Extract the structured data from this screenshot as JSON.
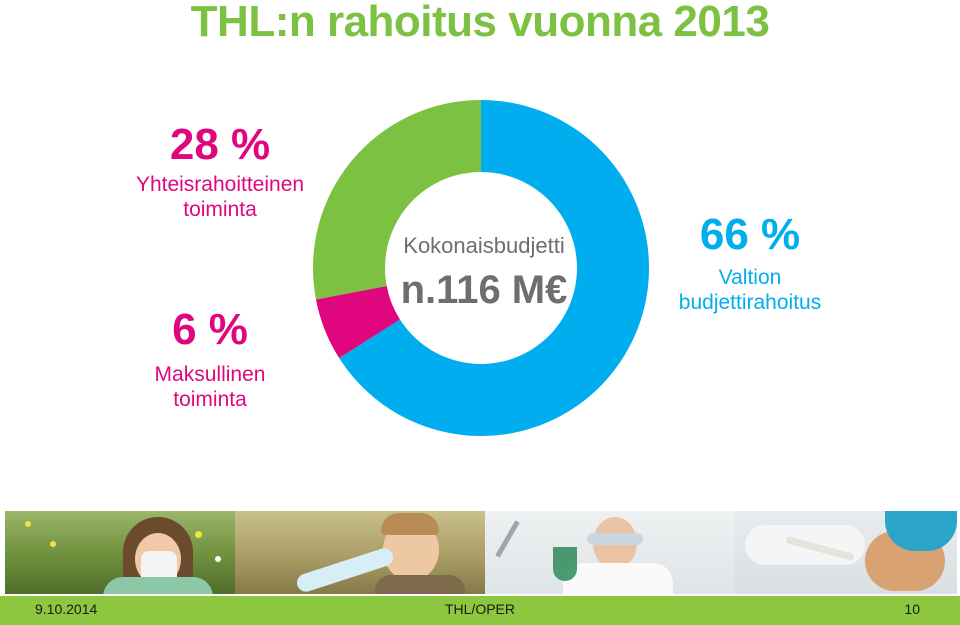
{
  "slide": {
    "title": "THL:n rahoitus vuonna 2013"
  },
  "labels": {
    "yhteis": {
      "percent": "28 %",
      "line1": "Yhteisrahoitteinen",
      "line2": "toiminta"
    },
    "maksul": {
      "percent": "6 %",
      "line1": "Maksullinen",
      "line2": "toiminta"
    },
    "valtion": {
      "percent": "66 %",
      "line1": "Valtion",
      "line2": "budjettirahoitus"
    }
  },
  "center": {
    "label": "Kokonaisbudjetti",
    "value": "n.116 M€"
  },
  "chart_data": {
    "type": "pie",
    "title": "",
    "hole": "donut",
    "slices": [
      {
        "label": "Valtion budjettirahoitus",
        "value": 66,
        "color": "#00aeef"
      },
      {
        "label": "Maksullinen toiminta",
        "value": 6,
        "color": "#e0067d"
      },
      {
        "label": "Yhteisrahoitteinen toiminta",
        "value": 28,
        "color": "#7cc142"
      }
    ]
  },
  "colors": {
    "green": "#7cc142",
    "magenta": "#e0067d",
    "blue": "#00aeef",
    "gray": "#6d6e71",
    "footer": "#8dc63f"
  },
  "footer": {
    "date": "9.10.2014",
    "center": "THL/OPER",
    "page": "10"
  }
}
